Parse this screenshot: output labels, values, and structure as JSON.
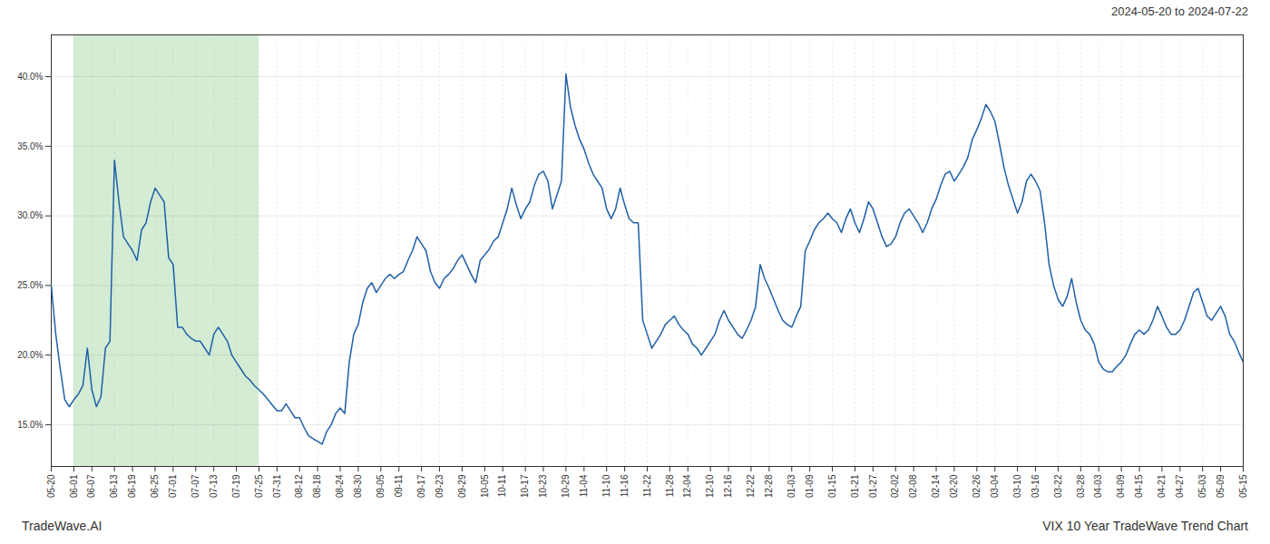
{
  "chart_data": {
    "type": "line",
    "title": "VIX 10 Year TradeWave Trend Chart",
    "subtitle": "2024-05-20 to 2024-07-22",
    "caption": "TradeWave.AI",
    "color": "#1f5fa6",
    "grid": true,
    "ylim": [
      0.12,
      0.43
    ],
    "yticks": [
      {
        "value": 0.15,
        "label": "15.0%"
      },
      {
        "value": 0.2,
        "label": "20.0%"
      },
      {
        "value": 0.25,
        "label": "25.0%"
      },
      {
        "value": 0.3,
        "label": "30.0%"
      },
      {
        "value": 0.35,
        "label": "35.0%"
      },
      {
        "value": 0.4,
        "label": "40.0%"
      }
    ],
    "shaded_region": {
      "start": "06-01",
      "end": "07-25",
      "color": "#d4ecd4"
    },
    "categories": [
      "05-20",
      null,
      null,
      null,
      null,
      "06-01",
      null,
      null,
      null,
      "06-07",
      null,
      null,
      null,
      null,
      "06-13",
      null,
      null,
      null,
      "06-19",
      null,
      null,
      null,
      null,
      "06-25",
      null,
      null,
      null,
      "07-01",
      null,
      null,
      null,
      null,
      "07-07",
      null,
      null,
      null,
      "07-13",
      null,
      null,
      null,
      null,
      "07-19",
      null,
      null,
      null,
      null,
      "07-25",
      null,
      null,
      null,
      "07-31",
      null,
      null,
      null,
      null,
      "08-12",
      null,
      null,
      null,
      "08-18",
      null,
      null,
      null,
      null,
      "08-24",
      null,
      null,
      null,
      "08-30",
      null,
      null,
      null,
      null,
      "09-05",
      null,
      null,
      null,
      "09-11",
      null,
      null,
      null,
      null,
      "09-17",
      null,
      null,
      null,
      "09-23",
      null,
      null,
      null,
      null,
      "09-29",
      null,
      null,
      null,
      null,
      "10-05",
      null,
      null,
      null,
      "10-11",
      null,
      null,
      null,
      null,
      "10-17",
      null,
      null,
      null,
      "10-23",
      null,
      null,
      null,
      null,
      "10-29",
      null,
      null,
      null,
      "11-04",
      null,
      null,
      null,
      null,
      "11-10",
      null,
      null,
      null,
      "11-16",
      null,
      null,
      null,
      null,
      "11-22",
      null,
      null,
      null,
      null,
      "11-28",
      null,
      null,
      null,
      "12-04",
      null,
      null,
      null,
      null,
      "12-10",
      null,
      null,
      null,
      "12-16",
      null,
      null,
      null,
      null,
      "12-22",
      null,
      null,
      null,
      "12-28",
      null,
      null,
      null,
      null,
      "01-03",
      null,
      null,
      null,
      "01-09",
      null,
      null,
      null,
      null,
      "01-15",
      null,
      null,
      null,
      null,
      "01-21",
      null,
      null,
      null,
      "01-27",
      null,
      null,
      null,
      null,
      "02-02",
      null,
      null,
      null,
      "02-08",
      null,
      null,
      null,
      null,
      "02-14",
      null,
      null,
      null,
      "02-20",
      null,
      null,
      null,
      null,
      "02-26",
      null,
      null,
      null,
      "03-04",
      null,
      null,
      null,
      null,
      "03-10",
      null,
      null,
      null,
      "03-16",
      null,
      null,
      null,
      null,
      "03-22",
      null,
      null,
      null,
      null,
      "03-28",
      null,
      null,
      null,
      "04-03",
      null,
      null,
      null,
      null,
      "04-09",
      null,
      null,
      null,
      "04-15",
      null,
      null,
      null,
      null,
      "04-21",
      null,
      null,
      null,
      "04-27",
      null,
      null,
      null,
      null,
      "05-03",
      null,
      null,
      null,
      "05-09",
      null,
      null,
      null,
      null,
      "05-15"
    ],
    "values": [
      0.25,
      0.215,
      0.19,
      0.168,
      0.163,
      0.168,
      0.172,
      0.178,
      0.205,
      0.175,
      0.163,
      0.17,
      0.205,
      0.21,
      0.34,
      0.31,
      0.285,
      0.28,
      0.275,
      0.268,
      0.29,
      0.295,
      0.31,
      0.32,
      0.315,
      0.31,
      0.27,
      0.265,
      0.22,
      0.22,
      0.215,
      0.212,
      0.21,
      0.21,
      0.205,
      0.2,
      0.215,
      0.22,
      0.215,
      0.21,
      0.2,
      0.195,
      0.19,
      0.185,
      0.182,
      0.178,
      0.175,
      0.172,
      0.168,
      0.164,
      0.16,
      0.16,
      0.165,
      0.16,
      0.155,
      0.155,
      0.148,
      0.142,
      0.14,
      0.138,
      0.136,
      0.145,
      0.15,
      0.158,
      0.162,
      0.158,
      0.195,
      0.215,
      0.222,
      0.238,
      0.248,
      0.252,
      0.245,
      0.25,
      0.255,
      0.258,
      0.255,
      0.258,
      0.26,
      0.268,
      0.275,
      0.285,
      0.28,
      0.275,
      0.26,
      0.252,
      0.248,
      0.255,
      0.258,
      0.262,
      0.268,
      0.272,
      0.265,
      0.258,
      0.252,
      0.268,
      0.272,
      0.276,
      0.282,
      0.285,
      0.295,
      0.305,
      0.32,
      0.308,
      0.298,
      0.305,
      0.31,
      0.322,
      0.33,
      0.332,
      0.325,
      0.305,
      0.315,
      0.325,
      0.402,
      0.378,
      0.365,
      0.355,
      0.348,
      0.338,
      0.33,
      0.325,
      0.32,
      0.305,
      0.298,
      0.305,
      0.32,
      0.308,
      0.298,
      0.295,
      0.295,
      0.225,
      0.215,
      0.205,
      0.21,
      0.215,
      0.222,
      0.225,
      0.228,
      0.222,
      0.218,
      0.215,
      0.208,
      0.205,
      0.2,
      0.205,
      0.21,
      0.215,
      0.225,
      0.232,
      0.225,
      0.22,
      0.215,
      0.212,
      0.218,
      0.225,
      0.235,
      0.265,
      0.255,
      0.248,
      0.24,
      0.232,
      0.225,
      0.222,
      0.22,
      0.228,
      0.235,
      0.275,
      0.282,
      0.29,
      0.295,
      0.298,
      0.302,
      0.298,
      0.295,
      0.288,
      0.298,
      0.305,
      0.295,
      0.288,
      0.298,
      0.31,
      0.305,
      0.295,
      0.285,
      0.278,
      0.28,
      0.285,
      0.295,
      0.302,
      0.305,
      0.3,
      0.295,
      0.288,
      0.295,
      0.305,
      0.312,
      0.322,
      0.33,
      0.332,
      0.325,
      0.33,
      0.335,
      0.342,
      0.355,
      0.362,
      0.37,
      0.38,
      0.375,
      0.368,
      0.352,
      0.335,
      0.322,
      0.312,
      0.302,
      0.31,
      0.325,
      0.33,
      0.325,
      0.318,
      0.295,
      0.265,
      0.25,
      0.24,
      0.235,
      0.242,
      0.255,
      0.238,
      0.225,
      0.218,
      0.215,
      0.208,
      0.195,
      0.19,
      0.188,
      0.188,
      0.192,
      0.195,
      0.2,
      0.208,
      0.215,
      0.218,
      0.215,
      0.218,
      0.225,
      0.235,
      0.228,
      0.22,
      0.215,
      0.215,
      0.218,
      0.225,
      0.235,
      0.245,
      0.248,
      0.238,
      0.228,
      0.225,
      0.23,
      0.235,
      0.228,
      0.215,
      0.21,
      0.202,
      0.195
    ]
  }
}
